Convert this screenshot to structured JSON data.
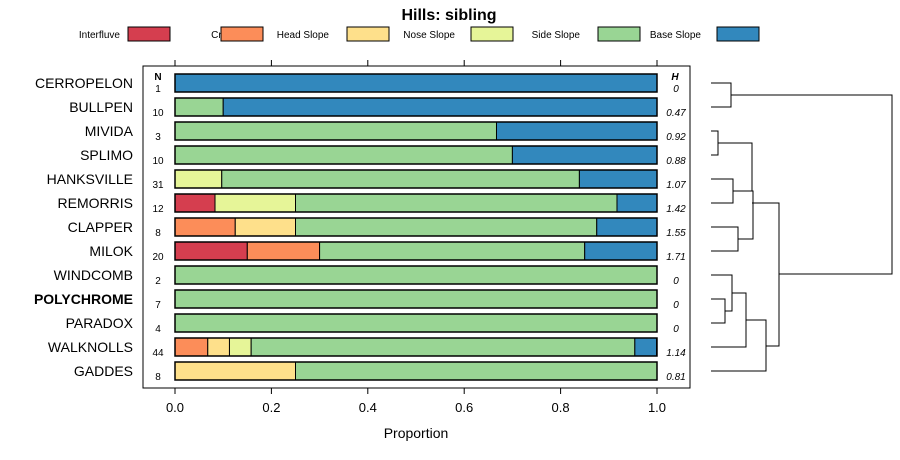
{
  "chart_data": {
    "type": "bar",
    "orientation": "horizontal-stacked",
    "title": "Hills: sibling",
    "xlabel": "Proportion",
    "xlim": [
      0,
      1
    ],
    "xticks": [
      "0.0",
      "0.2",
      "0.4",
      "0.6",
      "0.8",
      "1.0"
    ],
    "n_header": "N",
    "h_header": "H",
    "legend": [
      {
        "name": "Interfluve",
        "color": "#d53e4f"
      },
      {
        "name": "Crest",
        "color": "#fc8d59"
      },
      {
        "name": "Head Slope",
        "color": "#fee08b"
      },
      {
        "name": "Nose Slope",
        "color": "#e6f598"
      },
      {
        "name": "Side Slope",
        "color": "#99d594"
      },
      {
        "name": "Base Slope",
        "color": "#3288bd"
      }
    ],
    "rows": [
      {
        "name": "CERROPELON",
        "n": "1",
        "h": "0",
        "bold": false,
        "values": [
          0,
          0,
          0,
          0,
          0,
          1
        ]
      },
      {
        "name": "BULLPEN",
        "n": "10",
        "h": "0.47",
        "bold": false,
        "values": [
          0,
          0,
          0,
          0,
          0.1,
          0.9
        ]
      },
      {
        "name": "MIVIDA",
        "n": "3",
        "h": "0.92",
        "bold": false,
        "values": [
          0,
          0,
          0,
          0,
          0.667,
          0.333
        ]
      },
      {
        "name": "SPLIMO",
        "n": "10",
        "h": "0.88",
        "bold": false,
        "values": [
          0,
          0,
          0,
          0,
          0.7,
          0.3
        ]
      },
      {
        "name": "HANKSVILLE",
        "n": "31",
        "h": "1.07",
        "bold": false,
        "values": [
          0,
          0,
          0,
          0.097,
          0.742,
          0.161
        ]
      },
      {
        "name": "REMORRIS",
        "n": "12",
        "h": "1.42",
        "bold": false,
        "values": [
          0.083,
          0,
          0,
          0.167,
          0.667,
          0.083
        ]
      },
      {
        "name": "CLAPPER",
        "n": "8",
        "h": "1.55",
        "bold": false,
        "values": [
          0,
          0.125,
          0.125,
          0,
          0.625,
          0.125
        ]
      },
      {
        "name": "MILOK",
        "n": "20",
        "h": "1.71",
        "bold": false,
        "values": [
          0.15,
          0.15,
          0,
          0,
          0.55,
          0.15
        ]
      },
      {
        "name": "WINDCOMB",
        "n": "2",
        "h": "0",
        "bold": false,
        "values": [
          0,
          0,
          0,
          0,
          1,
          0
        ]
      },
      {
        "name": "POLYCHROME",
        "n": "7",
        "h": "0",
        "bold": true,
        "values": [
          0,
          0,
          0,
          0,
          1,
          0
        ]
      },
      {
        "name": "PARADOX",
        "n": "4",
        "h": "0",
        "bold": false,
        "values": [
          0,
          0,
          0,
          0,
          1,
          0
        ]
      },
      {
        "name": "WALKNOLLS",
        "n": "44",
        "h": "1.14",
        "bold": false,
        "values": [
          0,
          0.068,
          0.045,
          0.045,
          0.796,
          0.045
        ]
      },
      {
        "name": "GADDES",
        "n": "8",
        "h": "0.81",
        "bold": false,
        "values": [
          0,
          0,
          0.25,
          0,
          0.75,
          0
        ]
      }
    ]
  }
}
